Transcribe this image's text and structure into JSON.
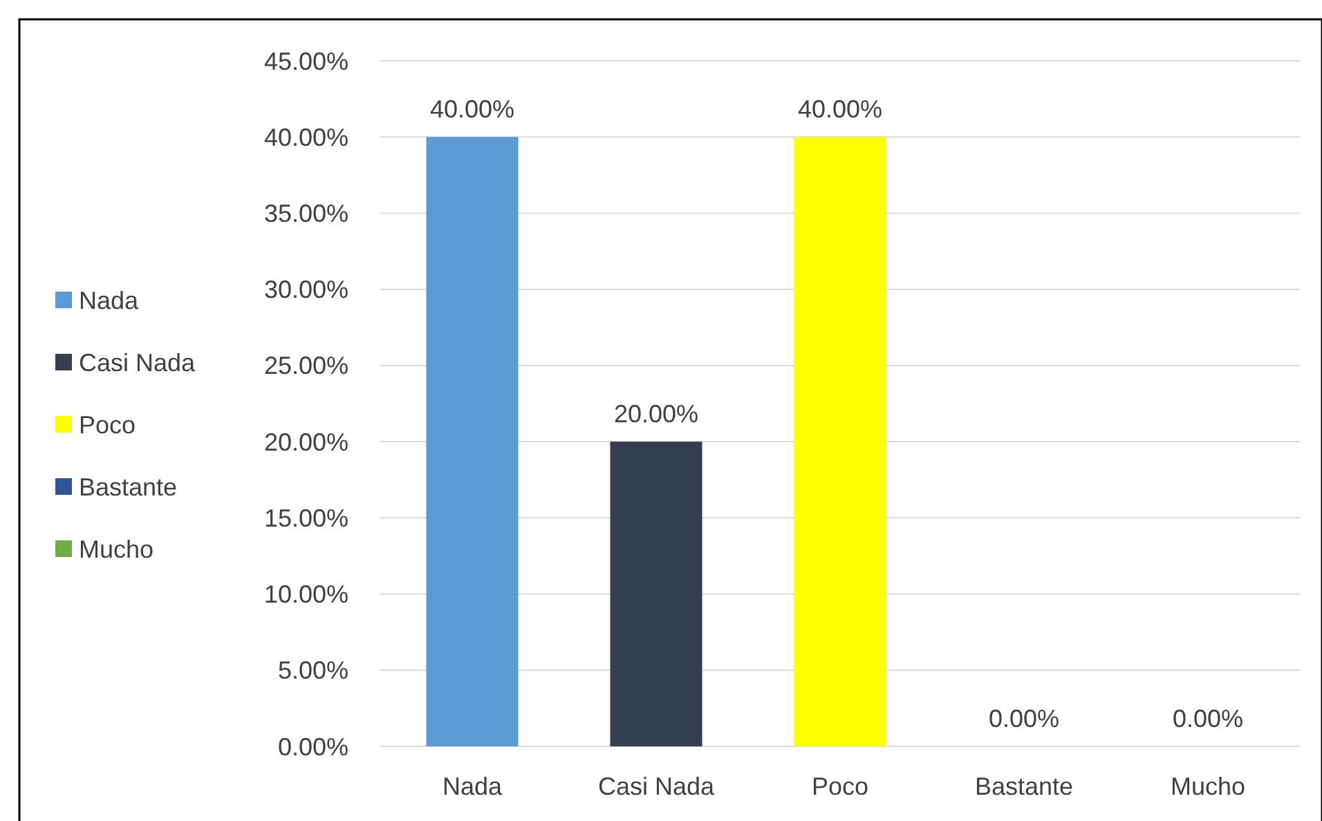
{
  "chart_data": {
    "type": "bar",
    "categories": [
      "Nada",
      "Casi Nada",
      "Poco",
      "Bastante",
      "Mucho"
    ],
    "series": [
      {
        "name": "Nada",
        "color": "#5b9bd5",
        "values": [
          40,
          null,
          null,
          null,
          null
        ],
        "value_labels": [
          "40.00%",
          null,
          null,
          null,
          null
        ]
      },
      {
        "name": "Casi Nada",
        "color": "#333f50",
        "values": [
          null,
          20,
          null,
          null,
          null
        ],
        "value_labels": [
          null,
          "20.00%",
          null,
          null,
          null
        ]
      },
      {
        "name": "Poco",
        "color": "#ffff00",
        "values": [
          null,
          null,
          40,
          null,
          null
        ],
        "value_labels": [
          null,
          null,
          "40.00%",
          null,
          null
        ]
      },
      {
        "name": "Bastante",
        "color": "#2f5597",
        "values": [
          null,
          null,
          null,
          0,
          null
        ],
        "value_labels": [
          null,
          null,
          null,
          "0.00%",
          null
        ]
      },
      {
        "name": "Mucho",
        "color": "#70ad47",
        "values": [
          null,
          null,
          null,
          null,
          0
        ],
        "value_labels": [
          null,
          null,
          null,
          null,
          "0.00%"
        ]
      }
    ],
    "ylim": [
      0,
      45
    ],
    "yticks": [
      {
        "value": 0,
        "label": "0.00%"
      },
      {
        "value": 5,
        "label": "5.00%"
      },
      {
        "value": 10,
        "label": "10.00%"
      },
      {
        "value": 15,
        "label": "15.00%"
      },
      {
        "value": 20,
        "label": "20.00%"
      },
      {
        "value": 25,
        "label": "25.00%"
      },
      {
        "value": 30,
        "label": "30.00%"
      },
      {
        "value": 35,
        "label": "35.00%"
      },
      {
        "value": 40,
        "label": "40.00%"
      },
      {
        "value": 45,
        "label": "45.00%"
      }
    ],
    "grid": "y",
    "legend": "left"
  }
}
